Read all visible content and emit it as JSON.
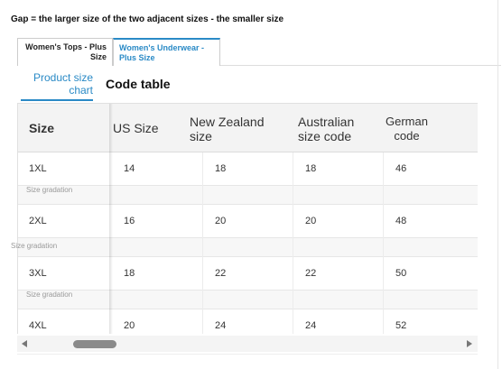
{
  "note": "Gap = the larger size of the two adjacent sizes - the smaller size",
  "panel_tabs": [
    {
      "label": "Women's Tops - Plus Size",
      "active": false
    },
    {
      "label": "Women's Underwear - Plus Size",
      "active": true
    }
  ],
  "sub_tabs": [
    {
      "label": "Product size chart",
      "active": true
    },
    {
      "label": "Code table",
      "active": false
    }
  ],
  "table": {
    "headers": [
      "Size",
      "US Size",
      "New Zealand size",
      "Australian size code",
      "German code"
    ],
    "rows": [
      [
        "1XL",
        "14",
        "18",
        "18",
        "46"
      ],
      [
        "2XL",
        "16",
        "20",
        "20",
        "48"
      ],
      [
        "3XL",
        "18",
        "22",
        "22",
        "50"
      ],
      [
        "4XL",
        "20",
        "24",
        "24",
        "52"
      ]
    ],
    "gap_label": "Size gradation"
  },
  "colors": {
    "accent": "#2a8ac6",
    "header_bg": "#f3f3f3",
    "gap_bg": "#f7f7f7"
  }
}
